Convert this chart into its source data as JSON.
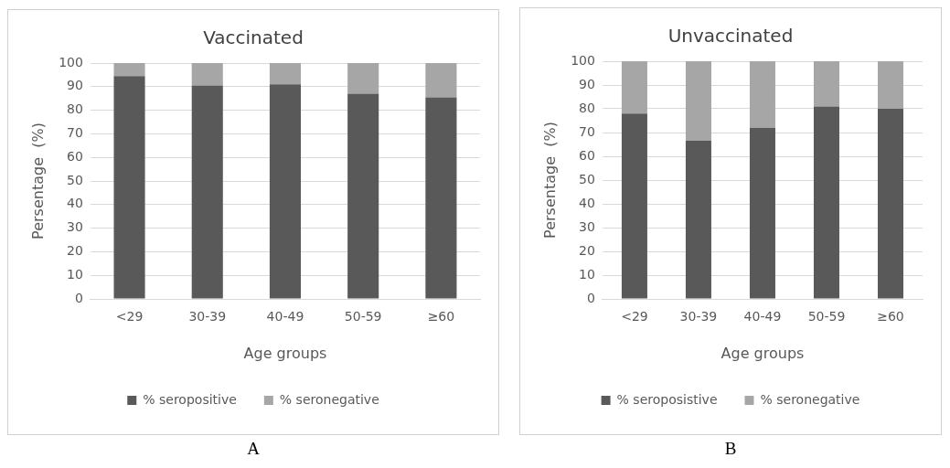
{
  "chart_data": [
    {
      "type": "bar",
      "title": "Vaccinated",
      "xlabel": "Age groups",
      "ylabel": "Persentage  (%)",
      "categories": [
        "<29",
        "30-39",
        "40-49",
        "50-59",
        "≥60"
      ],
      "stacked": true,
      "series": [
        {
          "name": "% seropositive",
          "color": "#595959",
          "values": [
            94.5,
            90.5,
            91,
            87,
            85.5
          ]
        },
        {
          "name": "% seronegative",
          "color": "#a6a6a6",
          "values": [
            5.5,
            9.5,
            9,
            13,
            14.5
          ]
        }
      ],
      "ylim": [
        0,
        100
      ],
      "yticks": [
        0,
        10,
        20,
        30,
        40,
        50,
        60,
        70,
        80,
        90,
        100
      ],
      "grid": "y",
      "legend": "bottom",
      "annotations": [
        "A"
      ]
    },
    {
      "type": "bar",
      "title": "Unvaccinated",
      "xlabel": "Age groups",
      "ylabel": "Persentage  (%)",
      "categories": [
        "<29",
        "30-39",
        "40-49",
        "50-59",
        "≥60"
      ],
      "stacked": true,
      "series": [
        {
          "name": "% seroposistive",
          "color": "#595959",
          "values": [
            78,
            66.5,
            72,
            81,
            80
          ]
        },
        {
          "name": "% seronegative",
          "color": "#a6a6a6",
          "values": [
            22,
            33.5,
            28,
            19,
            20
          ]
        }
      ],
      "ylim": [
        0,
        100
      ],
      "yticks": [
        0,
        10,
        20,
        30,
        40,
        50,
        60,
        70,
        80,
        90,
        100
      ],
      "grid": "y",
      "legend": "bottom",
      "annotations": [
        "B"
      ]
    }
  ]
}
